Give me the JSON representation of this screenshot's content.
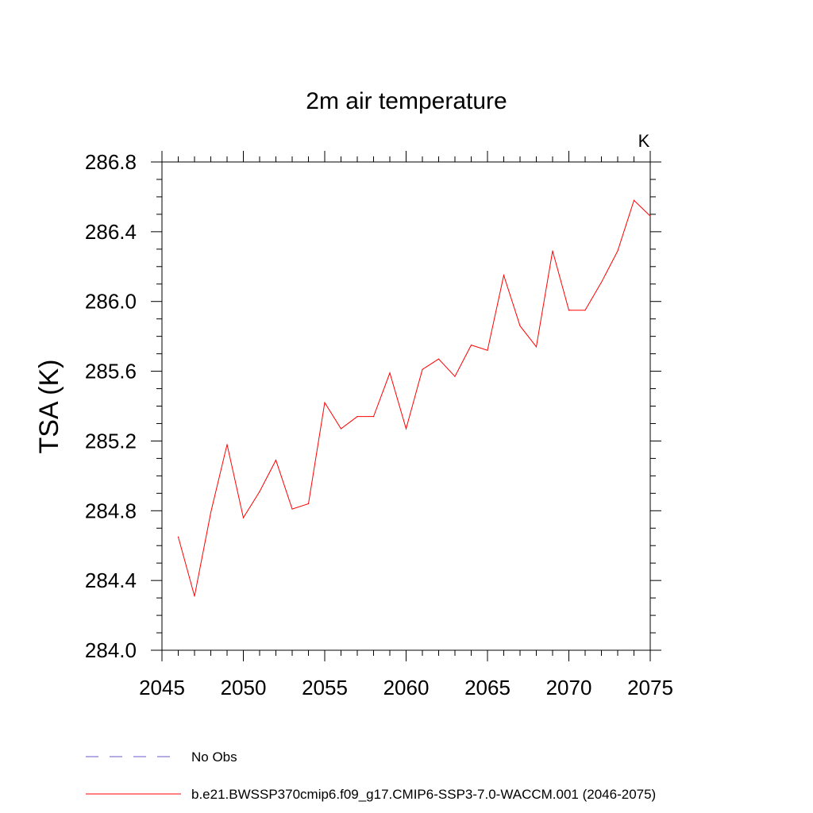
{
  "chart_data": {
    "type": "line",
    "title": "2m air temperature",
    "units_label": "K",
    "xlabel": "",
    "ylabel": "TSA  (K)",
    "xlim": [
      2045,
      2075
    ],
    "ylim": [
      284.0,
      286.8
    ],
    "x_ticks": [
      2045,
      2050,
      2055,
      2060,
      2065,
      2070,
      2075
    ],
    "x_tick_labels": [
      "2045",
      "2050",
      "2055",
      "2060",
      "2065",
      "2070",
      "2075"
    ],
    "x_minor_step": 1,
    "y_ticks": [
      284.0,
      284.4,
      284.8,
      285.2,
      285.6,
      286.0,
      286.4,
      286.8
    ],
    "y_tick_labels": [
      "284.0",
      "284.4",
      "284.8",
      "285.2",
      "285.6",
      "286.0",
      "286.4",
      "286.8"
    ],
    "y_minor_step": 0.1,
    "grid": false,
    "legend_position": "bottom",
    "series": [
      {
        "name": "b.e21.BWSSP370cmip6.f09_g17.CMIP6-SSP3-7.0-WACCM.001 (2046-2075)",
        "color": "#ff0000",
        "style": "solid",
        "x": [
          2046,
          2047,
          2048,
          2049,
          2050,
          2051,
          2052,
          2053,
          2054,
          2055,
          2056,
          2057,
          2058,
          2059,
          2060,
          2061,
          2062,
          2063,
          2064,
          2065,
          2066,
          2067,
          2068,
          2069,
          2070,
          2071,
          2072,
          2073,
          2074,
          2075
        ],
        "values": [
          284.65,
          284.31,
          284.79,
          285.18,
          284.76,
          284.91,
          285.09,
          284.81,
          284.84,
          285.42,
          285.27,
          285.34,
          285.34,
          285.59,
          285.27,
          285.61,
          285.67,
          285.57,
          285.75,
          285.72,
          286.15,
          285.86,
          285.74,
          286.29,
          285.95,
          285.95,
          286.11,
          286.29,
          286.58,
          286.49
        ]
      }
    ],
    "legend": [
      {
        "label": "No Obs",
        "color": "#6a5acd",
        "style": "dashed"
      },
      {
        "label": "b.e21.BWSSP370cmip6.f09_g17.CMIP6-SSP3-7.0-WACCM.001 (2046-2075)",
        "color": "#ff0000",
        "style": "solid"
      }
    ]
  }
}
